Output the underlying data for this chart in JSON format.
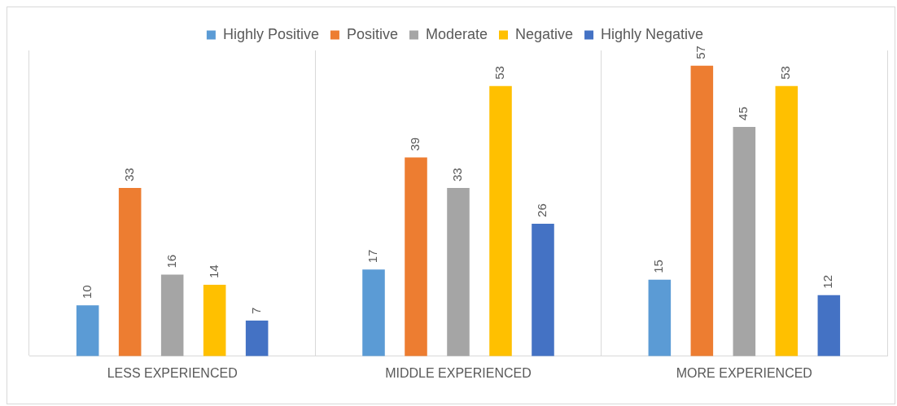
{
  "chart_data": {
    "type": "bar",
    "categories": [
      "LESS EXPERIENCED",
      "MIDDLE EXPERIENCED",
      "MORE EXPERIENCED"
    ],
    "series": [
      {
        "name": "Highly Positive",
        "color": "#5b9bd5",
        "values": [
          10,
          17,
          15
        ]
      },
      {
        "name": "Positive",
        "color": "#ed7d31",
        "values": [
          33,
          39,
          57
        ]
      },
      {
        "name": "Moderate",
        "color": "#a5a5a5",
        "values": [
          16,
          33,
          45
        ]
      },
      {
        "name": "Negative",
        "color": "#ffc000",
        "values": [
          14,
          53,
          53
        ]
      },
      {
        "name": "Highly Negative",
        "color": "#4472c4",
        "values": [
          7,
          26,
          12
        ]
      }
    ],
    "ylim": [
      0,
      60
    ],
    "tick_labels": "x",
    "grid": "x",
    "legend": "top",
    "data_labels": true
  }
}
